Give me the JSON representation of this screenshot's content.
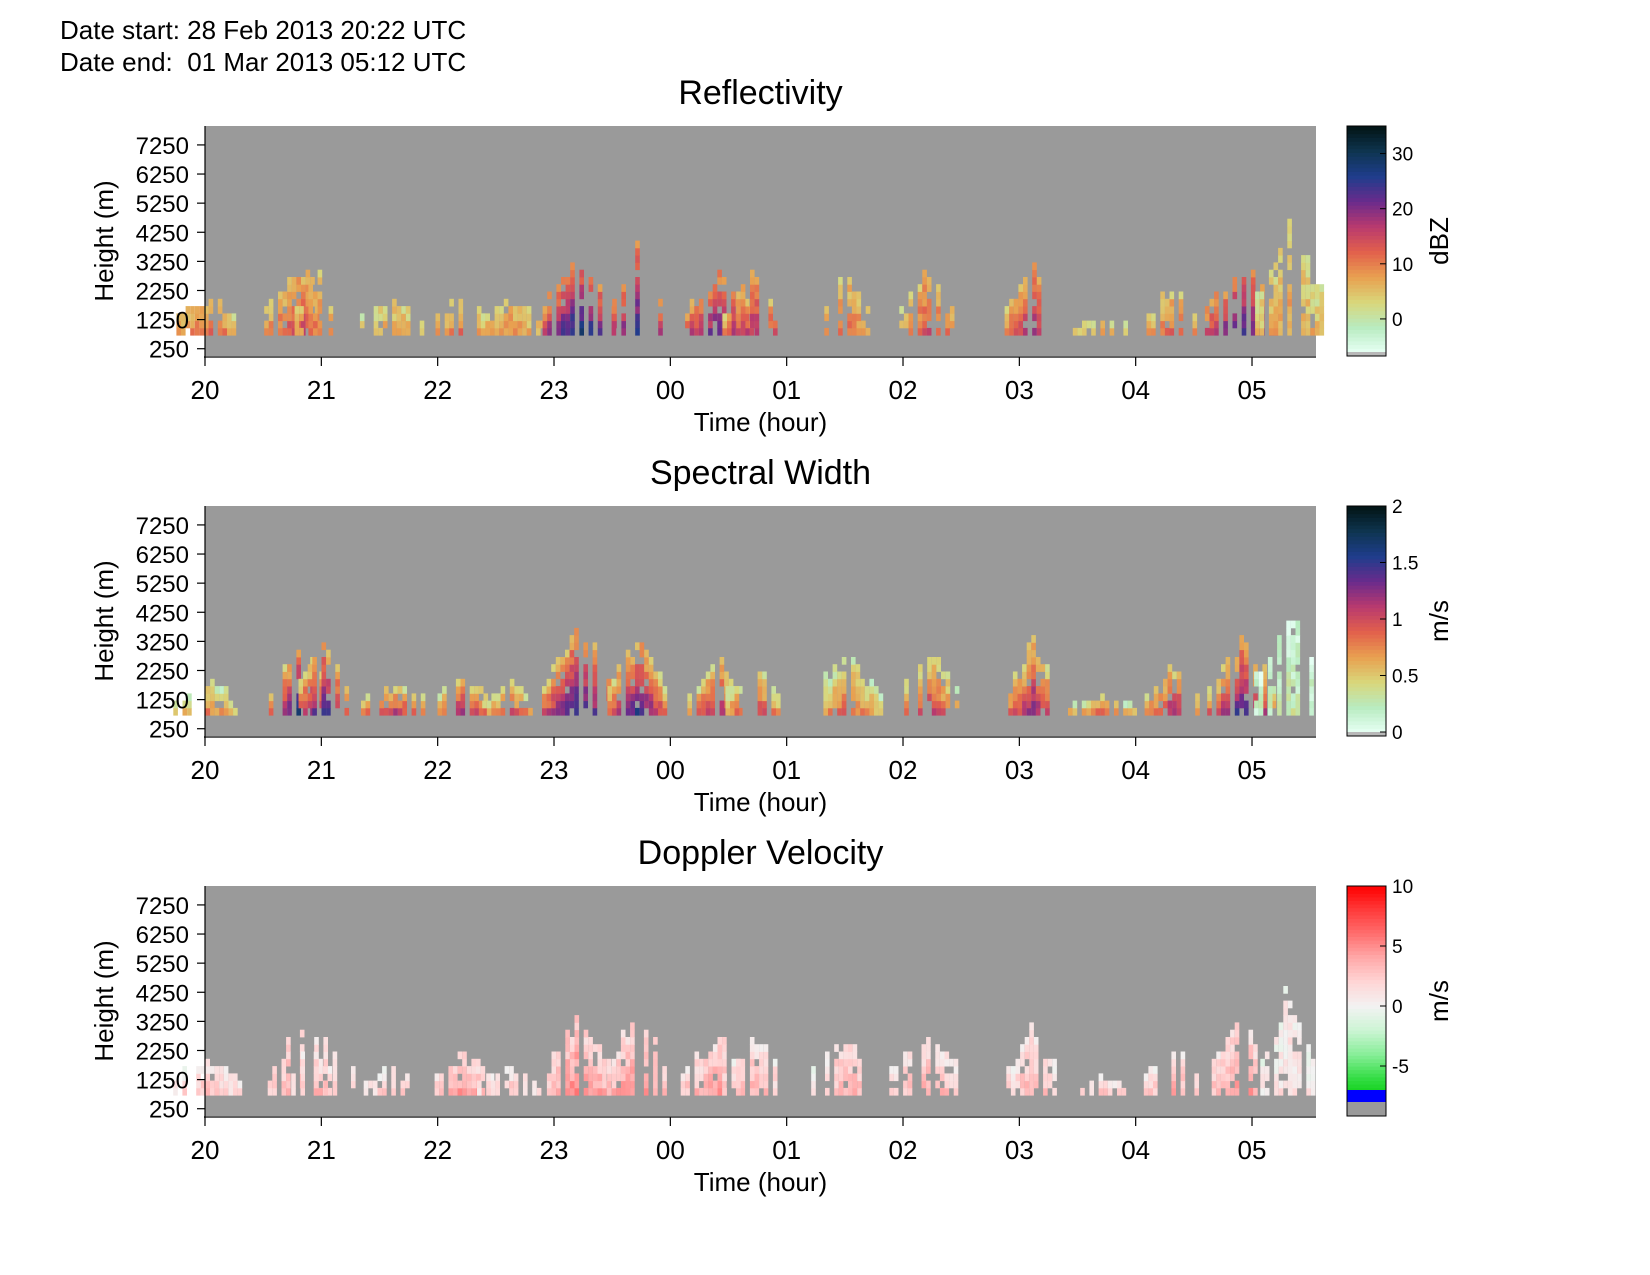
{
  "header": {
    "date_start": "Date start: 28 Feb 2013 20:22 UTC",
    "date_end": "Date end:  01 Mar 2013 05:12 UTC"
  },
  "chart_data": [
    {
      "type": "heatmap",
      "title": "Reflectivity",
      "xlabel": "Time (hour)",
      "ylabel": "Height (m)",
      "x_tick_labels": [
        "20",
        "21",
        "22",
        "23",
        "00",
        "01",
        "02",
        "03",
        "04",
        "05"
      ],
      "y_tick_labels": [
        "250",
        "1250",
        "2250",
        "3250",
        "4250",
        "5250",
        "6250",
        "7250"
      ],
      "ylim": [
        0,
        7900
      ],
      "colorbar": {
        "label": "dBZ",
        "ticks": [
          "0",
          "10",
          "20",
          "30"
        ],
        "range": [
          -6,
          35
        ],
        "colors": [
          "#e6fff4",
          "#b8ebc0",
          "#d9d67a",
          "#e8a050",
          "#e2604c",
          "#b93a6e",
          "#6a2b8c",
          "#1f3d8c",
          "#0e3550",
          "#021414"
        ]
      },
      "nodata_color": "#9a9a9a",
      "cloud_tops": [
        {
          "hour": 20.0,
          "top_m": 2100,
          "peak": 12
        },
        {
          "hour": 20.8,
          "top_m": 3300,
          "peak": 15
        },
        {
          "hour": 21.0,
          "top_m": 3300,
          "peak": 12
        },
        {
          "hour": 21.6,
          "top_m": 1900,
          "peak": 8
        },
        {
          "hour": 22.2,
          "top_m": 2200,
          "peak": 12
        },
        {
          "hour": 22.6,
          "top_m": 2000,
          "peak": 9
        },
        {
          "hour": 23.2,
          "top_m": 3900,
          "peak": 28
        },
        {
          "hour": 23.7,
          "top_m": 3800,
          "peak": 25
        },
        {
          "hour": 0.4,
          "top_m": 3000,
          "peak": 22
        },
        {
          "hour": 0.7,
          "top_m": 2900,
          "peak": 18
        },
        {
          "hour": 1.5,
          "top_m": 2900,
          "peak": 12
        },
        {
          "hour": 2.2,
          "top_m": 3200,
          "peak": 14
        },
        {
          "hour": 3.1,
          "top_m": 3300,
          "peak": 18
        },
        {
          "hour": 3.7,
          "top_m": 1300,
          "peak": 6
        },
        {
          "hour": 4.3,
          "top_m": 2600,
          "peak": 12
        },
        {
          "hour": 4.9,
          "top_m": 3500,
          "peak": 25
        },
        {
          "hour": 5.3,
          "top_m": 4700,
          "peak": 8
        }
      ]
    },
    {
      "type": "heatmap",
      "title": "Spectral Width",
      "xlabel": "Time (hour)",
      "ylabel": "Height (m)",
      "x_tick_labels": [
        "20",
        "21",
        "22",
        "23",
        "00",
        "01",
        "02",
        "03",
        "04",
        "05"
      ],
      "y_tick_labels": [
        "250",
        "1250",
        "2250",
        "3250",
        "4250",
        "5250",
        "6250",
        "7250"
      ],
      "ylim": [
        0,
        7900
      ],
      "colorbar": {
        "label": "m/s",
        "ticks": [
          "0",
          "0.5",
          "1",
          "1.5",
          "2"
        ],
        "range": [
          0,
          2
        ],
        "colors": [
          "#e6fff4",
          "#b8ebc0",
          "#d9d67a",
          "#e8a050",
          "#e2604c",
          "#b93a6e",
          "#6a2b8c",
          "#1f3d8c",
          "#0e3550",
          "#021414"
        ]
      },
      "nodata_color": "#9a9a9a",
      "cloud_tops": [
        {
          "hour": 20.0,
          "top_m": 2100,
          "peak": 0.8
        },
        {
          "hour": 20.8,
          "top_m": 3300,
          "peak": 1.6
        },
        {
          "hour": 21.0,
          "top_m": 3300,
          "peak": 1.5
        },
        {
          "hour": 21.6,
          "top_m": 1900,
          "peak": 1.1
        },
        {
          "hour": 22.2,
          "top_m": 2200,
          "peak": 1.2
        },
        {
          "hour": 22.6,
          "top_m": 2000,
          "peak": 1.0
        },
        {
          "hour": 23.2,
          "top_m": 3900,
          "peak": 1.6
        },
        {
          "hour": 23.7,
          "top_m": 3800,
          "peak": 1.5
        },
        {
          "hour": 0.4,
          "top_m": 3000,
          "peak": 1.2
        },
        {
          "hour": 0.7,
          "top_m": 2900,
          "peak": 1.1
        },
        {
          "hour": 1.5,
          "top_m": 2900,
          "peak": 0.9
        },
        {
          "hour": 2.2,
          "top_m": 3200,
          "peak": 1.1
        },
        {
          "hour": 3.1,
          "top_m": 3300,
          "peak": 1.3
        },
        {
          "hour": 3.7,
          "top_m": 1300,
          "peak": 0.9
        },
        {
          "hour": 4.3,
          "top_m": 2600,
          "peak": 1.2
        },
        {
          "hour": 4.9,
          "top_m": 3500,
          "peak": 1.5
        },
        {
          "hour": 5.3,
          "top_m": 4700,
          "peak": 0.3
        }
      ]
    },
    {
      "type": "heatmap",
      "title": "Doppler Velocity",
      "xlabel": "Time (hour)",
      "ylabel": "Height (m)",
      "x_tick_labels": [
        "20",
        "21",
        "22",
        "23",
        "00",
        "01",
        "02",
        "03",
        "04",
        "05"
      ],
      "y_tick_labels": [
        "250",
        "1250",
        "2250",
        "3250",
        "4250",
        "5250",
        "6250",
        "7250"
      ],
      "ylim": [
        0,
        7900
      ],
      "colorbar": {
        "label": "m/s",
        "ticks": [
          "-5",
          "0",
          "5",
          "10"
        ],
        "range": [
          -7,
          10
        ],
        "colors": [
          "#00c800",
          "#33dd44",
          "#88ee99",
          "#ccf5d4",
          "#f2f2f2",
          "#ffd6d6",
          "#ffaaaa",
          "#ff7070",
          "#ff3b3b",
          "#ff0000"
        ]
      },
      "nodata_color": "#9a9a9a",
      "cloud_tops": [
        {
          "hour": 20.0,
          "top_m": 2100,
          "peak": 3
        },
        {
          "hour": 20.8,
          "top_m": 3300,
          "peak": 5
        },
        {
          "hour": 21.0,
          "top_m": 3300,
          "peak": 4
        },
        {
          "hour": 21.6,
          "top_m": 1900,
          "peak": 3
        },
        {
          "hour": 22.2,
          "top_m": 2200,
          "peak": 5
        },
        {
          "hour": 22.6,
          "top_m": 2000,
          "peak": 3
        },
        {
          "hour": 23.2,
          "top_m": 3900,
          "peak": 6
        },
        {
          "hour": 23.7,
          "top_m": 3800,
          "peak": 6
        },
        {
          "hour": 0.4,
          "top_m": 3000,
          "peak": 5
        },
        {
          "hour": 0.7,
          "top_m": 2900,
          "peak": 4
        },
        {
          "hour": 1.5,
          "top_m": 2900,
          "peak": 4
        },
        {
          "hour": 2.2,
          "top_m": 3200,
          "peak": 4
        },
        {
          "hour": 3.1,
          "top_m": 3300,
          "peak": 4
        },
        {
          "hour": 3.7,
          "top_m": 1300,
          "peak": 3
        },
        {
          "hour": 4.3,
          "top_m": 2600,
          "peak": 4
        },
        {
          "hour": 4.9,
          "top_m": 3500,
          "peak": 5
        },
        {
          "hour": 5.3,
          "top_m": 4700,
          "peak": 2
        }
      ]
    }
  ]
}
